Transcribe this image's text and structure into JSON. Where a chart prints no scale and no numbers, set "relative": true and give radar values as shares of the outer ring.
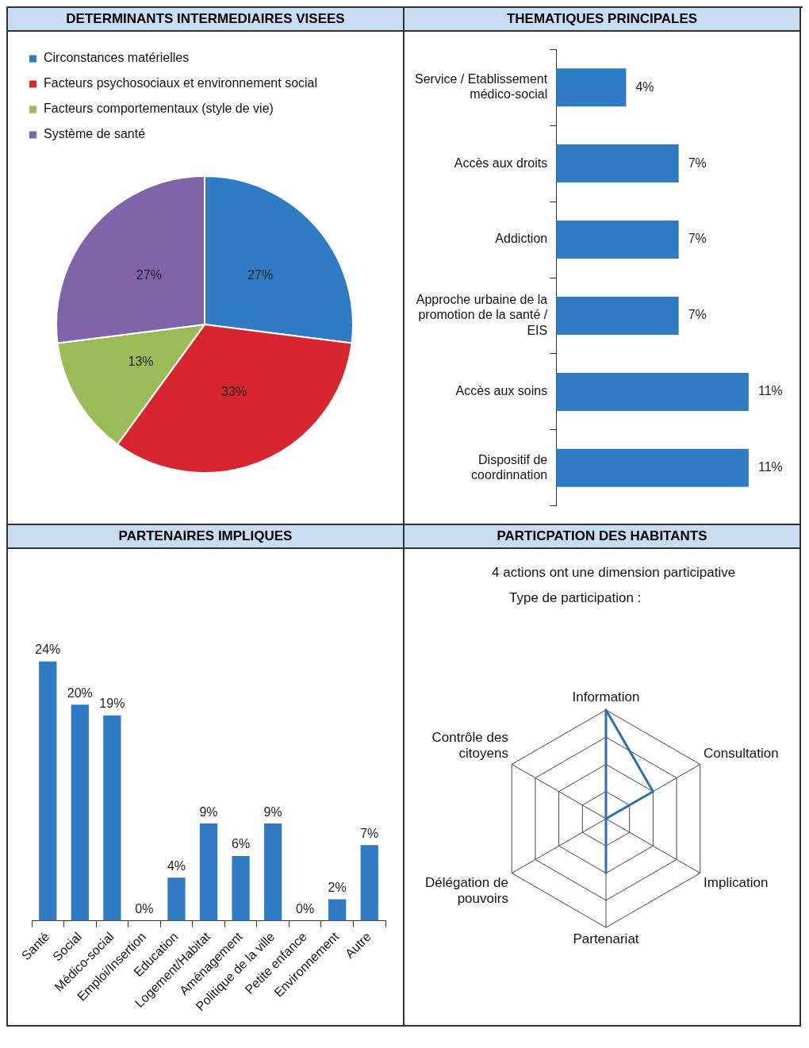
{
  "chart_data": [
    {
      "type": "pie",
      "title": "DETERMINANTS INTERMEDIAIRES VISEES",
      "categories": [
        "Circonstances matérielles",
        "Facteurs psychosociaux et environnement social",
        "Facteurs comportementaux (style de vie)",
        "Système de santé"
      ],
      "values": [
        27,
        33,
        13,
        27
      ],
      "colors": [
        "#2f7bc4",
        "#d7262f",
        "#9bbb59",
        "#8063a8"
      ],
      "value_labels": [
        "27%",
        "33%",
        "13%",
        "27%"
      ],
      "legend": "top left"
    },
    {
      "type": "bar",
      "orientation": "horizontal",
      "title": "THEMATIQUES PRINCIPALES",
      "categories": [
        "Service / Etablissement médico-social",
        "Accès aux droits",
        "Addiction",
        "Approche urbaine de la promotion de la santé / EIS",
        "Accès aux soins",
        "Dispositif de coordinnation"
      ],
      "values": [
        4,
        7,
        7,
        7,
        11,
        11
      ],
      "color": "#2f7bc4",
      "value_labels": [
        "4%",
        "7%",
        "7%",
        "7%",
        "11%",
        "11%"
      ]
    },
    {
      "type": "bar",
      "title": "PARTENAIRES IMPLIQUES",
      "categories": [
        "Santé",
        "Social",
        "Médico-social",
        "Emploi/Insertion",
        "Education",
        "Logement/Habitat",
        "Aménagement",
        "Politique de la ville",
        "Petite enfance",
        "Environnement",
        "Autre"
      ],
      "values": [
        24,
        20,
        19,
        0,
        4,
        9,
        6,
        9,
        0,
        2,
        7
      ],
      "color": "#2f7bc4",
      "value_labels": [
        "24%",
        "20%",
        "19%",
        "0%",
        "4%",
        "9%",
        "6%",
        "9%",
        "0%",
        "2%",
        "7%"
      ]
    },
    {
      "type": "radar",
      "title": "PARTICPATION DES HABITANTS",
      "subtitle": "4 actions ont une dimension participative",
      "annotations": [
        "Type de participation :"
      ],
      "categories": [
        "Information",
        "Consultation",
        "Implication",
        "Partenariat",
        "Délégation de pouvoirs",
        "Contrôle des citoyens"
      ],
      "series": [
        {
          "color": "#2f6fb0",
          "values": [
            1,
            0.5,
            0,
            0.5,
            0,
            0
          ]
        }
      ],
      "relative": true,
      "grid": true,
      "marker": "none"
    }
  ]
}
